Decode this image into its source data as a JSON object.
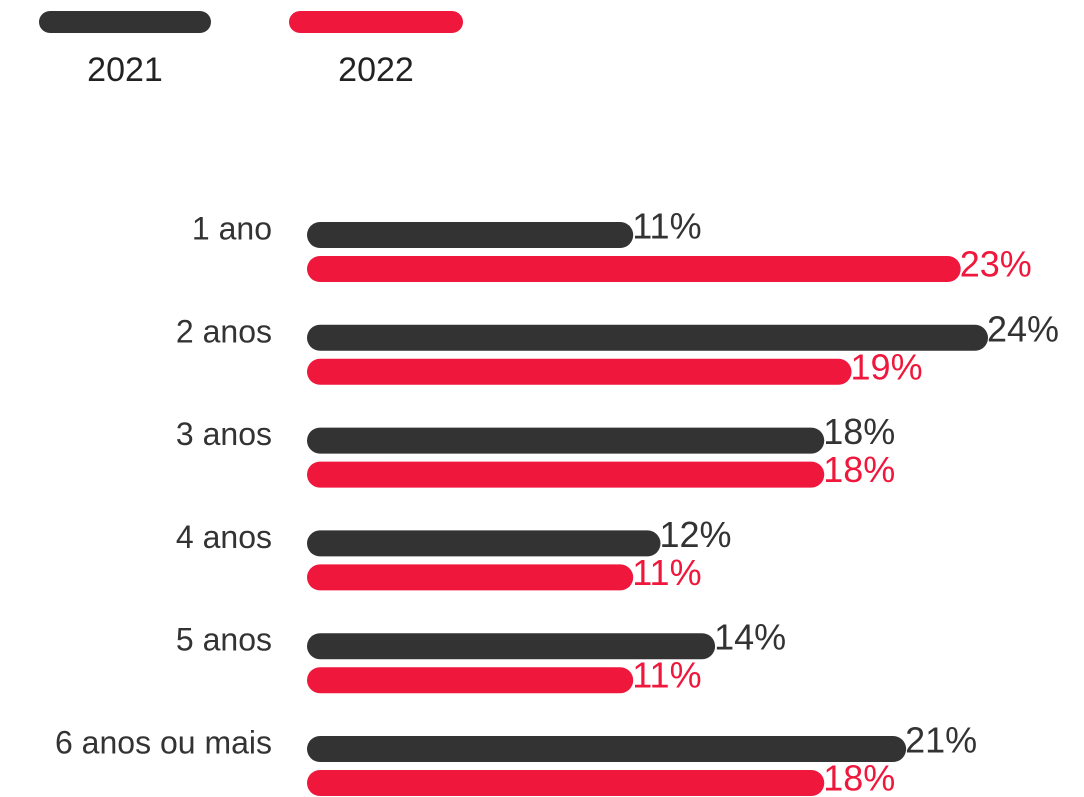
{
  "chart_data": {
    "type": "hbar",
    "categories": [
      "1 ano",
      "2 anos",
      "3 anos",
      "4 anos",
      "5 anos",
      "6 anos ou mais"
    ],
    "series": [
      {
        "name": "2021",
        "color": "#333333",
        "values": [
          11,
          24,
          18,
          12,
          14,
          21
        ],
        "value_labels": [
          "11%",
          "24%",
          "18%",
          "12%",
          "14%",
          "21%"
        ]
      },
      {
        "name": "2022",
        "color": "#f0173c",
        "values": [
          23,
          19,
          18,
          11,
          11,
          18
        ],
        "value_labels": [
          "23%",
          "19%",
          "18%",
          "11%",
          "11%",
          "18%"
        ]
      }
    ]
  }
}
